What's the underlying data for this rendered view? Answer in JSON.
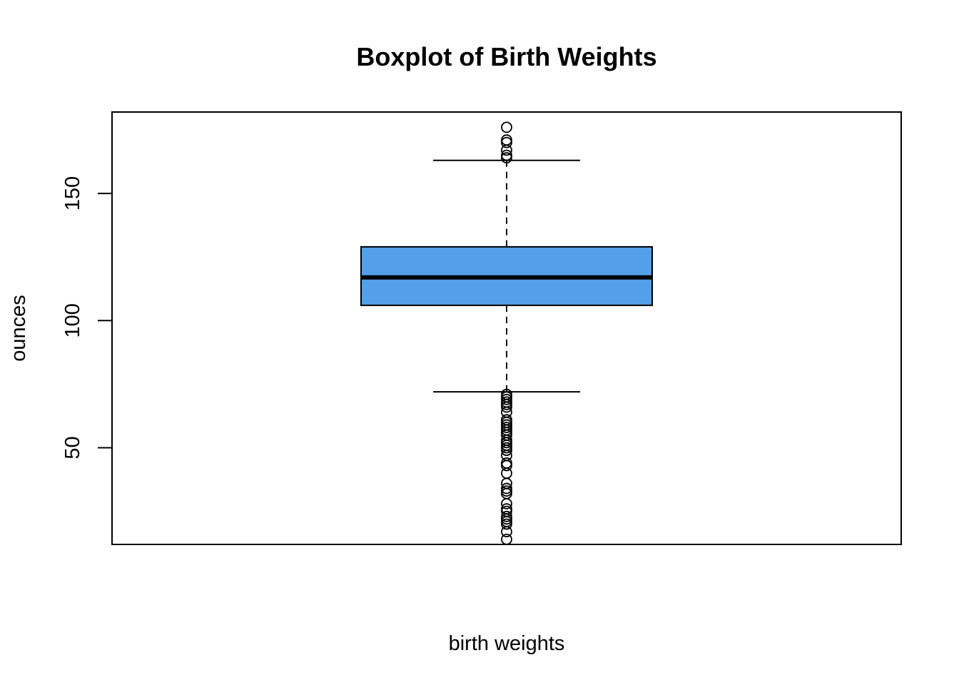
{
  "chart_data": {
    "type": "box",
    "title": "Boxplot of Birth Weights",
    "xlabel": "birth weights",
    "ylabel": "ounces",
    "ylim": [
      12,
      182
    ],
    "yticks": [
      50,
      100,
      150
    ],
    "colors": {
      "box_fill": "#539FE8",
      "stroke": "#000000"
    },
    "series": [
      {
        "stats": {
          "lower_whisker": 72,
          "q1": 106,
          "median": 117,
          "q3": 129,
          "upper_whisker": 163
        },
        "outliers": [
          176,
          171,
          170,
          167,
          165,
          164,
          71,
          70,
          69,
          68,
          67,
          66,
          64,
          61,
          60,
          59,
          58,
          57,
          56,
          55,
          53,
          52,
          51,
          50,
          49,
          47,
          44,
          43,
          40,
          36,
          34,
          33,
          32,
          28,
          26,
          25,
          23,
          22,
          21,
          20,
          17,
          14
        ]
      }
    ]
  }
}
